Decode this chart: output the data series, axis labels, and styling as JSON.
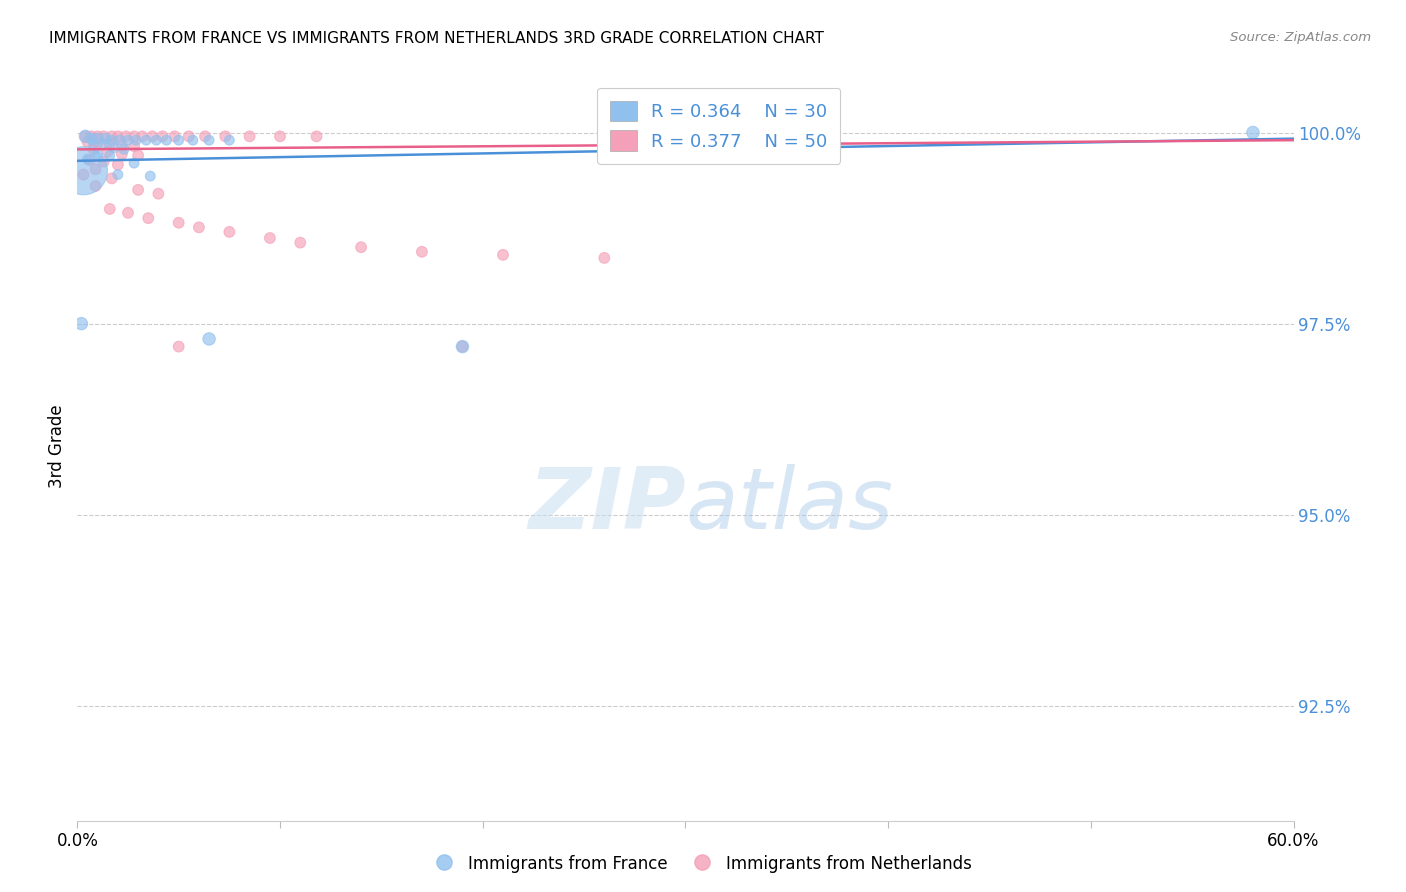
{
  "title": "IMMIGRANTS FROM FRANCE VS IMMIGRANTS FROM NETHERLANDS 3RD GRADE CORRELATION CHART",
  "source": "Source: ZipAtlas.com",
  "ylabel": "3rd Grade",
  "ytick_labels": [
    "100.0%",
    "97.5%",
    "95.0%",
    "92.5%"
  ],
  "ytick_values": [
    1.0,
    0.975,
    0.95,
    0.925
  ],
  "xlim": [
    0.0,
    0.6
  ],
  "ylim": [
    0.91,
    1.008
  ],
  "france_color": "#90C0EE",
  "netherlands_color": "#F4A0B8",
  "france_line_color": "#4A90D9",
  "netherlands_line_color": "#E8608A",
  "france_R": 0.364,
  "france_N": 30,
  "netherlands_R": 0.377,
  "netherlands_N": 50,
  "france_points": [
    [
      0.004,
      0.9995
    ],
    [
      0.007,
      0.9992
    ],
    [
      0.01,
      0.9992
    ],
    [
      0.014,
      0.9992
    ],
    [
      0.017,
      0.999
    ],
    [
      0.021,
      0.999
    ],
    [
      0.025,
      0.999
    ],
    [
      0.029,
      0.999
    ],
    [
      0.034,
      0.999
    ],
    [
      0.039,
      0.999
    ],
    [
      0.044,
      0.999
    ],
    [
      0.05,
      0.999
    ],
    [
      0.057,
      0.999
    ],
    [
      0.065,
      0.999
    ],
    [
      0.075,
      0.999
    ],
    [
      0.008,
      0.9985
    ],
    [
      0.013,
      0.9985
    ],
    [
      0.018,
      0.998
    ],
    [
      0.023,
      0.9978
    ],
    [
      0.01,
      0.9972
    ],
    [
      0.016,
      0.997
    ],
    [
      0.005,
      0.9965
    ],
    [
      0.028,
      0.996
    ],
    [
      0.003,
      0.995
    ],
    [
      0.02,
      0.9945
    ],
    [
      0.036,
      0.9943
    ],
    [
      0.002,
      0.975
    ],
    [
      0.065,
      0.973
    ],
    [
      0.19,
      0.972
    ],
    [
      0.58,
      1.0
    ]
  ],
  "france_sizes": [
    80,
    60,
    60,
    60,
    50,
    50,
    50,
    50,
    50,
    50,
    50,
    50,
    50,
    50,
    50,
    50,
    50,
    50,
    50,
    50,
    50,
    50,
    50,
    1200,
    50,
    50,
    80,
    80,
    80,
    80
  ],
  "netherlands_points": [
    [
      0.004,
      0.9995
    ],
    [
      0.007,
      0.9995
    ],
    [
      0.01,
      0.9995
    ],
    [
      0.013,
      0.9995
    ],
    [
      0.017,
      0.9995
    ],
    [
      0.02,
      0.9995
    ],
    [
      0.024,
      0.9995
    ],
    [
      0.028,
      0.9995
    ],
    [
      0.032,
      0.9995
    ],
    [
      0.037,
      0.9995
    ],
    [
      0.042,
      0.9995
    ],
    [
      0.048,
      0.9995
    ],
    [
      0.055,
      0.9995
    ],
    [
      0.063,
      0.9995
    ],
    [
      0.073,
      0.9995
    ],
    [
      0.085,
      0.9995
    ],
    [
      0.1,
      0.9995
    ],
    [
      0.118,
      0.9995
    ],
    [
      0.005,
      0.9988
    ],
    [
      0.01,
      0.9986
    ],
    [
      0.016,
      0.9985
    ],
    [
      0.022,
      0.9983
    ],
    [
      0.028,
      0.9982
    ],
    [
      0.008,
      0.9978
    ],
    [
      0.015,
      0.9975
    ],
    [
      0.022,
      0.9972
    ],
    [
      0.03,
      0.997
    ],
    [
      0.006,
      0.9964
    ],
    [
      0.013,
      0.9962
    ],
    [
      0.02,
      0.9958
    ],
    [
      0.009,
      0.9952
    ],
    [
      0.003,
      0.9945
    ],
    [
      0.017,
      0.994
    ],
    [
      0.009,
      0.993
    ],
    [
      0.03,
      0.9925
    ],
    [
      0.04,
      0.992
    ],
    [
      0.016,
      0.99
    ],
    [
      0.025,
      0.9895
    ],
    [
      0.035,
      0.9888
    ],
    [
      0.05,
      0.9882
    ],
    [
      0.06,
      0.9876
    ],
    [
      0.075,
      0.987
    ],
    [
      0.095,
      0.9862
    ],
    [
      0.11,
      0.9856
    ],
    [
      0.14,
      0.985
    ],
    [
      0.17,
      0.9844
    ],
    [
      0.21,
      0.984
    ],
    [
      0.26,
      0.9836
    ],
    [
      0.05,
      0.972
    ],
    [
      0.19,
      0.972
    ]
  ],
  "netherlands_sizes": [
    60,
    60,
    60,
    60,
    60,
    60,
    60,
    60,
    60,
    60,
    60,
    60,
    60,
    60,
    60,
    60,
    60,
    60,
    60,
    60,
    60,
    60,
    60,
    60,
    60,
    60,
    60,
    60,
    60,
    60,
    60,
    60,
    60,
    60,
    60,
    60,
    60,
    60,
    60,
    60,
    60,
    60,
    60,
    60,
    60,
    60,
    60,
    60,
    60,
    60
  ],
  "france_trend": [
    0.9963,
    0.9992
  ],
  "netherlands_trend": [
    0.9978,
    0.999
  ],
  "watermark_zip": "ZIP",
  "watermark_atlas": "atlas"
}
